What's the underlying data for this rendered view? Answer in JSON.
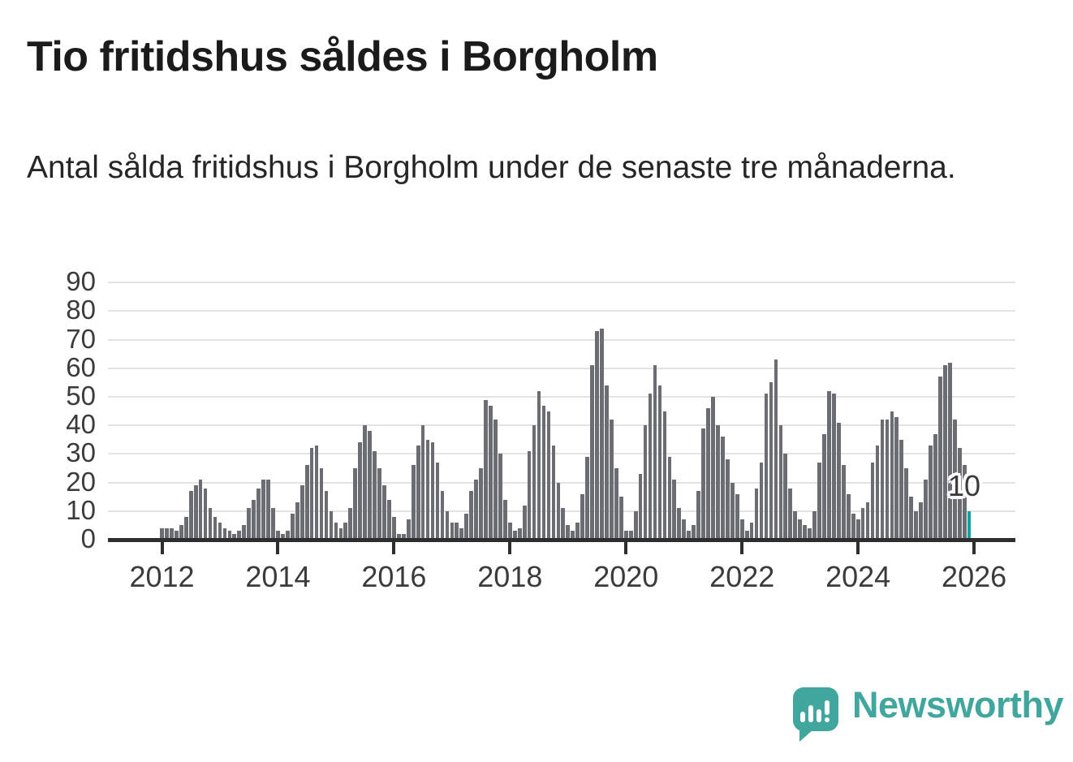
{
  "title": "Tio fritidshus såldes i Borgholm",
  "subtitle": "Antal sålda fritidshus i Borgholm under de senaste tre månaderna.",
  "annotation": {
    "label": "10"
  },
  "branding": {
    "name": "Newsworthy",
    "icon": "newsworthy-bar-chart-speech-bubble-icon"
  },
  "colors": {
    "bar": "#6c6c73",
    "highlight": "#10a3a5",
    "brand": "#41a69d",
    "grid": "#e3e3e3",
    "axis": "#2e2e2e",
    "title_text": "#1b1b1b",
    "body_text": "#262626",
    "tick_text": "#3b3b3b",
    "annotation_text": "#3a3a3a"
  },
  "chart_data": {
    "type": "bar",
    "title": "Tio fritidshus såldes i Borgholm",
    "subtitle": "Antal sålda fritidshus i Borgholm under de senaste tre månaderna.",
    "x_unit": "month",
    "start": "2012-01",
    "end": "2025-12",
    "xlabel": "",
    "ylabel": "",
    "ylim": [
      0,
      90
    ],
    "y_ticks": [
      0,
      10,
      20,
      30,
      40,
      50,
      60,
      70,
      80,
      90
    ],
    "x_tick_labels": [
      "2012",
      "2014",
      "2016",
      "2018",
      "2020",
      "2022",
      "2024",
      "2026"
    ],
    "grid": true,
    "series_by_year": [
      {
        "year": 2012,
        "monthly_values": [
          4,
          4,
          4,
          3,
          5,
          8,
          17,
          19,
          21,
          18,
          11,
          8
        ]
      },
      {
        "year": 2013,
        "monthly_values": [
          6,
          4,
          3,
          2,
          3,
          5,
          11,
          14,
          18,
          21,
          21,
          11
        ]
      },
      {
        "year": 2014,
        "monthly_values": [
          3,
          2,
          3,
          9,
          13,
          19,
          26,
          32,
          33,
          25,
          17,
          10
        ]
      },
      {
        "year": 2015,
        "monthly_values": [
          6,
          4,
          6,
          11,
          25,
          34,
          40,
          38,
          31,
          25,
          19,
          14
        ]
      },
      {
        "year": 2016,
        "monthly_values": [
          8,
          2,
          2,
          7,
          26,
          33,
          40,
          35,
          34,
          27,
          17,
          10
        ]
      },
      {
        "year": 2017,
        "monthly_values": [
          6,
          6,
          4,
          9,
          17,
          21,
          25,
          49,
          47,
          42,
          30,
          14
        ]
      },
      {
        "year": 2018,
        "monthly_values": [
          6,
          3,
          4,
          12,
          31,
          40,
          52,
          47,
          45,
          33,
          20,
          11
        ]
      },
      {
        "year": 2019,
        "monthly_values": [
          5,
          3,
          6,
          16,
          29,
          61,
          73,
          74,
          54,
          42,
          25,
          15
        ]
      },
      {
        "year": 2020,
        "monthly_values": [
          3,
          3,
          10,
          23,
          40,
          51,
          61,
          54,
          45,
          29,
          21,
          11
        ]
      },
      {
        "year": 2021,
        "monthly_values": [
          7,
          3,
          5,
          17,
          39,
          46,
          50,
          40,
          36,
          28,
          20,
          16
        ]
      },
      {
        "year": 2022,
        "monthly_values": [
          7,
          3,
          6,
          18,
          27,
          51,
          55,
          63,
          40,
          30,
          18,
          10
        ]
      },
      {
        "year": 2023,
        "monthly_values": [
          7,
          5,
          4,
          10,
          27,
          37,
          52,
          51,
          41,
          26,
          16,
          9
        ]
      },
      {
        "year": 2024,
        "monthly_values": [
          7,
          11,
          13,
          27,
          33,
          42,
          42,
          45,
          43,
          35,
          25,
          15
        ]
      },
      {
        "year": 2025,
        "monthly_values": [
          10,
          13,
          21,
          33,
          37,
          57,
          61,
          62,
          42,
          32,
          26,
          10
        ]
      }
    ],
    "highlight_last_bar": {
      "value": 10,
      "label": "10",
      "color": "#10a3a5"
    },
    "legend": null
  }
}
